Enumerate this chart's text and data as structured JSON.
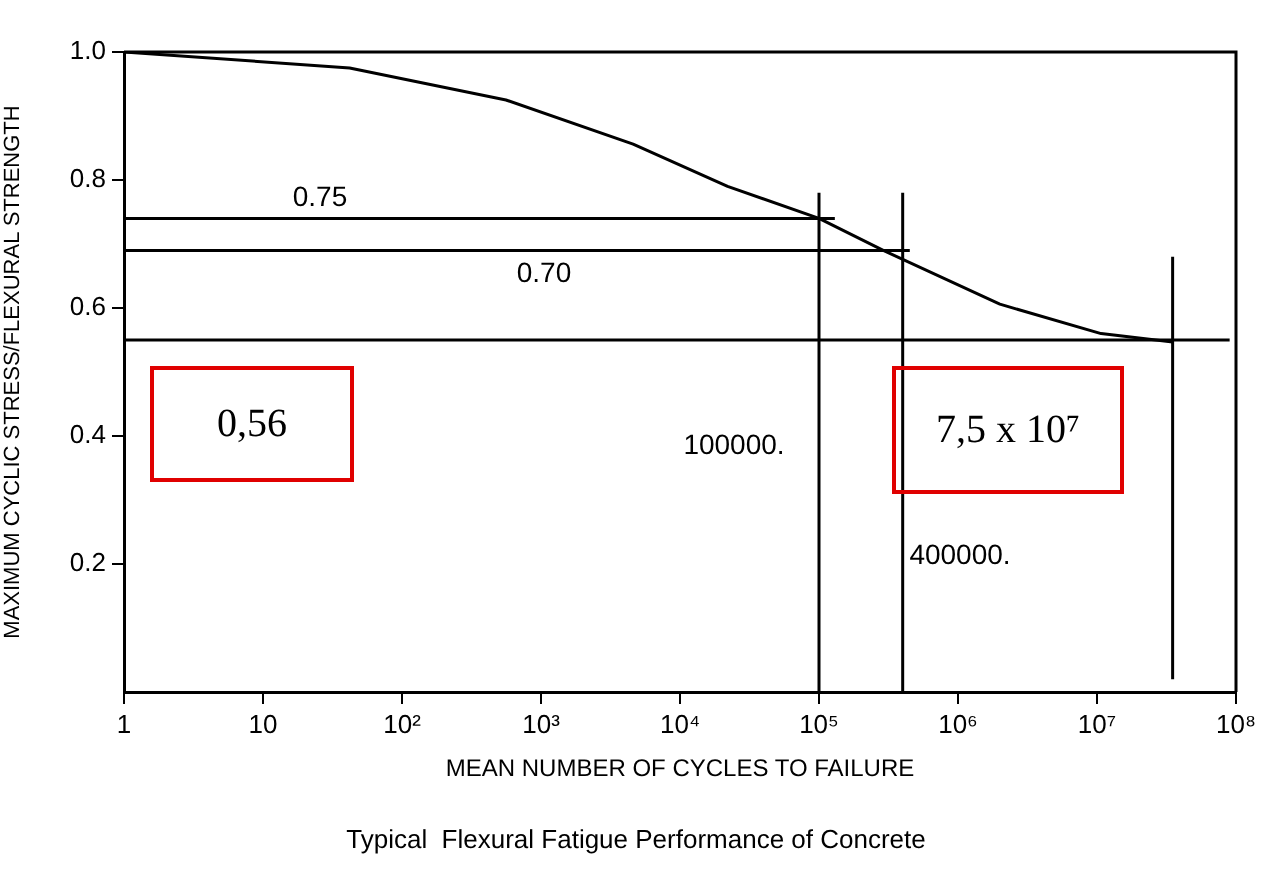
{
  "chart_data": {
    "type": "line",
    "title": "Typical  Flexural Fatigue Performance of Concrete",
    "xlabel": "MEAN NUMBER OF CYCLES TO FAILURE",
    "ylabel": "MAXIMUM CYCLIC STRESS/FLEXURAL STRENGTH",
    "log": "x",
    "xlim": [
      1,
      100000000
    ],
    "xticks": [
      1,
      10,
      {
        "value": 100,
        "label": "10²"
      },
      {
        "value": 1000,
        "label": "10³"
      },
      {
        "value": 10000,
        "label": "10⁴"
      },
      {
        "value": 100000,
        "label": "10⁵"
      },
      {
        "value": 1000000,
        "label": "10⁶"
      },
      {
        "value": 10000000,
        "label": "10⁷"
      },
      {
        "value": 100000000,
        "label": "10⁸"
      }
    ],
    "ylim": [
      0,
      1
    ],
    "yticks": [
      {
        "value": 0.2,
        "label": "0.2"
      },
      {
        "value": 0.4,
        "label": "0.4"
      },
      {
        "value": 0.6,
        "label": "0.6"
      },
      {
        "value": 0.8,
        "label": "0.8"
      },
      {
        "value": 1,
        "label": "1.0"
      }
    ],
    "grid": false,
    "legend": false,
    "marker": "none",
    "line_style": "solid",
    "series": [
      {
        "color": "#000000",
        "x": [
          1,
          42,
          560,
          4600,
          22000,
          100000,
          290000,
          2000000,
          10700000,
          35000000
        ],
        "values": [
          1.0,
          0.975,
          0.925,
          0.856,
          0.79,
          0.74,
          0.69,
          0.606,
          0.56,
          0.547
        ]
      },
      {
        "color": "#000000",
        "x": [
          1,
          130000
        ],
        "values": [
          0.74,
          0.74
        ]
      },
      {
        "color": "#000000",
        "x": [
          1,
          450000
        ],
        "values": [
          0.69,
          0.69
        ]
      },
      {
        "color": "#000000",
        "x": [
          1,
          90000000
        ],
        "values": [
          0.55,
          0.55
        ]
      },
      {
        "color": "#000000",
        "x": [
          100000,
          100000
        ],
        "values": [
          0,
          0.78
        ]
      },
      {
        "color": "#000000",
        "x": [
          400000,
          400000
        ],
        "values": [
          0,
          0.78
        ]
      },
      {
        "color": "#000000",
        "x": [
          35000000,
          35000000
        ],
        "values": [
          0.02,
          0.68
        ]
      }
    ],
    "annotations": [
      "0.75",
      "0.70",
      "100000.",
      "400000.",
      "0,56",
      "7,5 x 10⁷"
    ]
  }
}
